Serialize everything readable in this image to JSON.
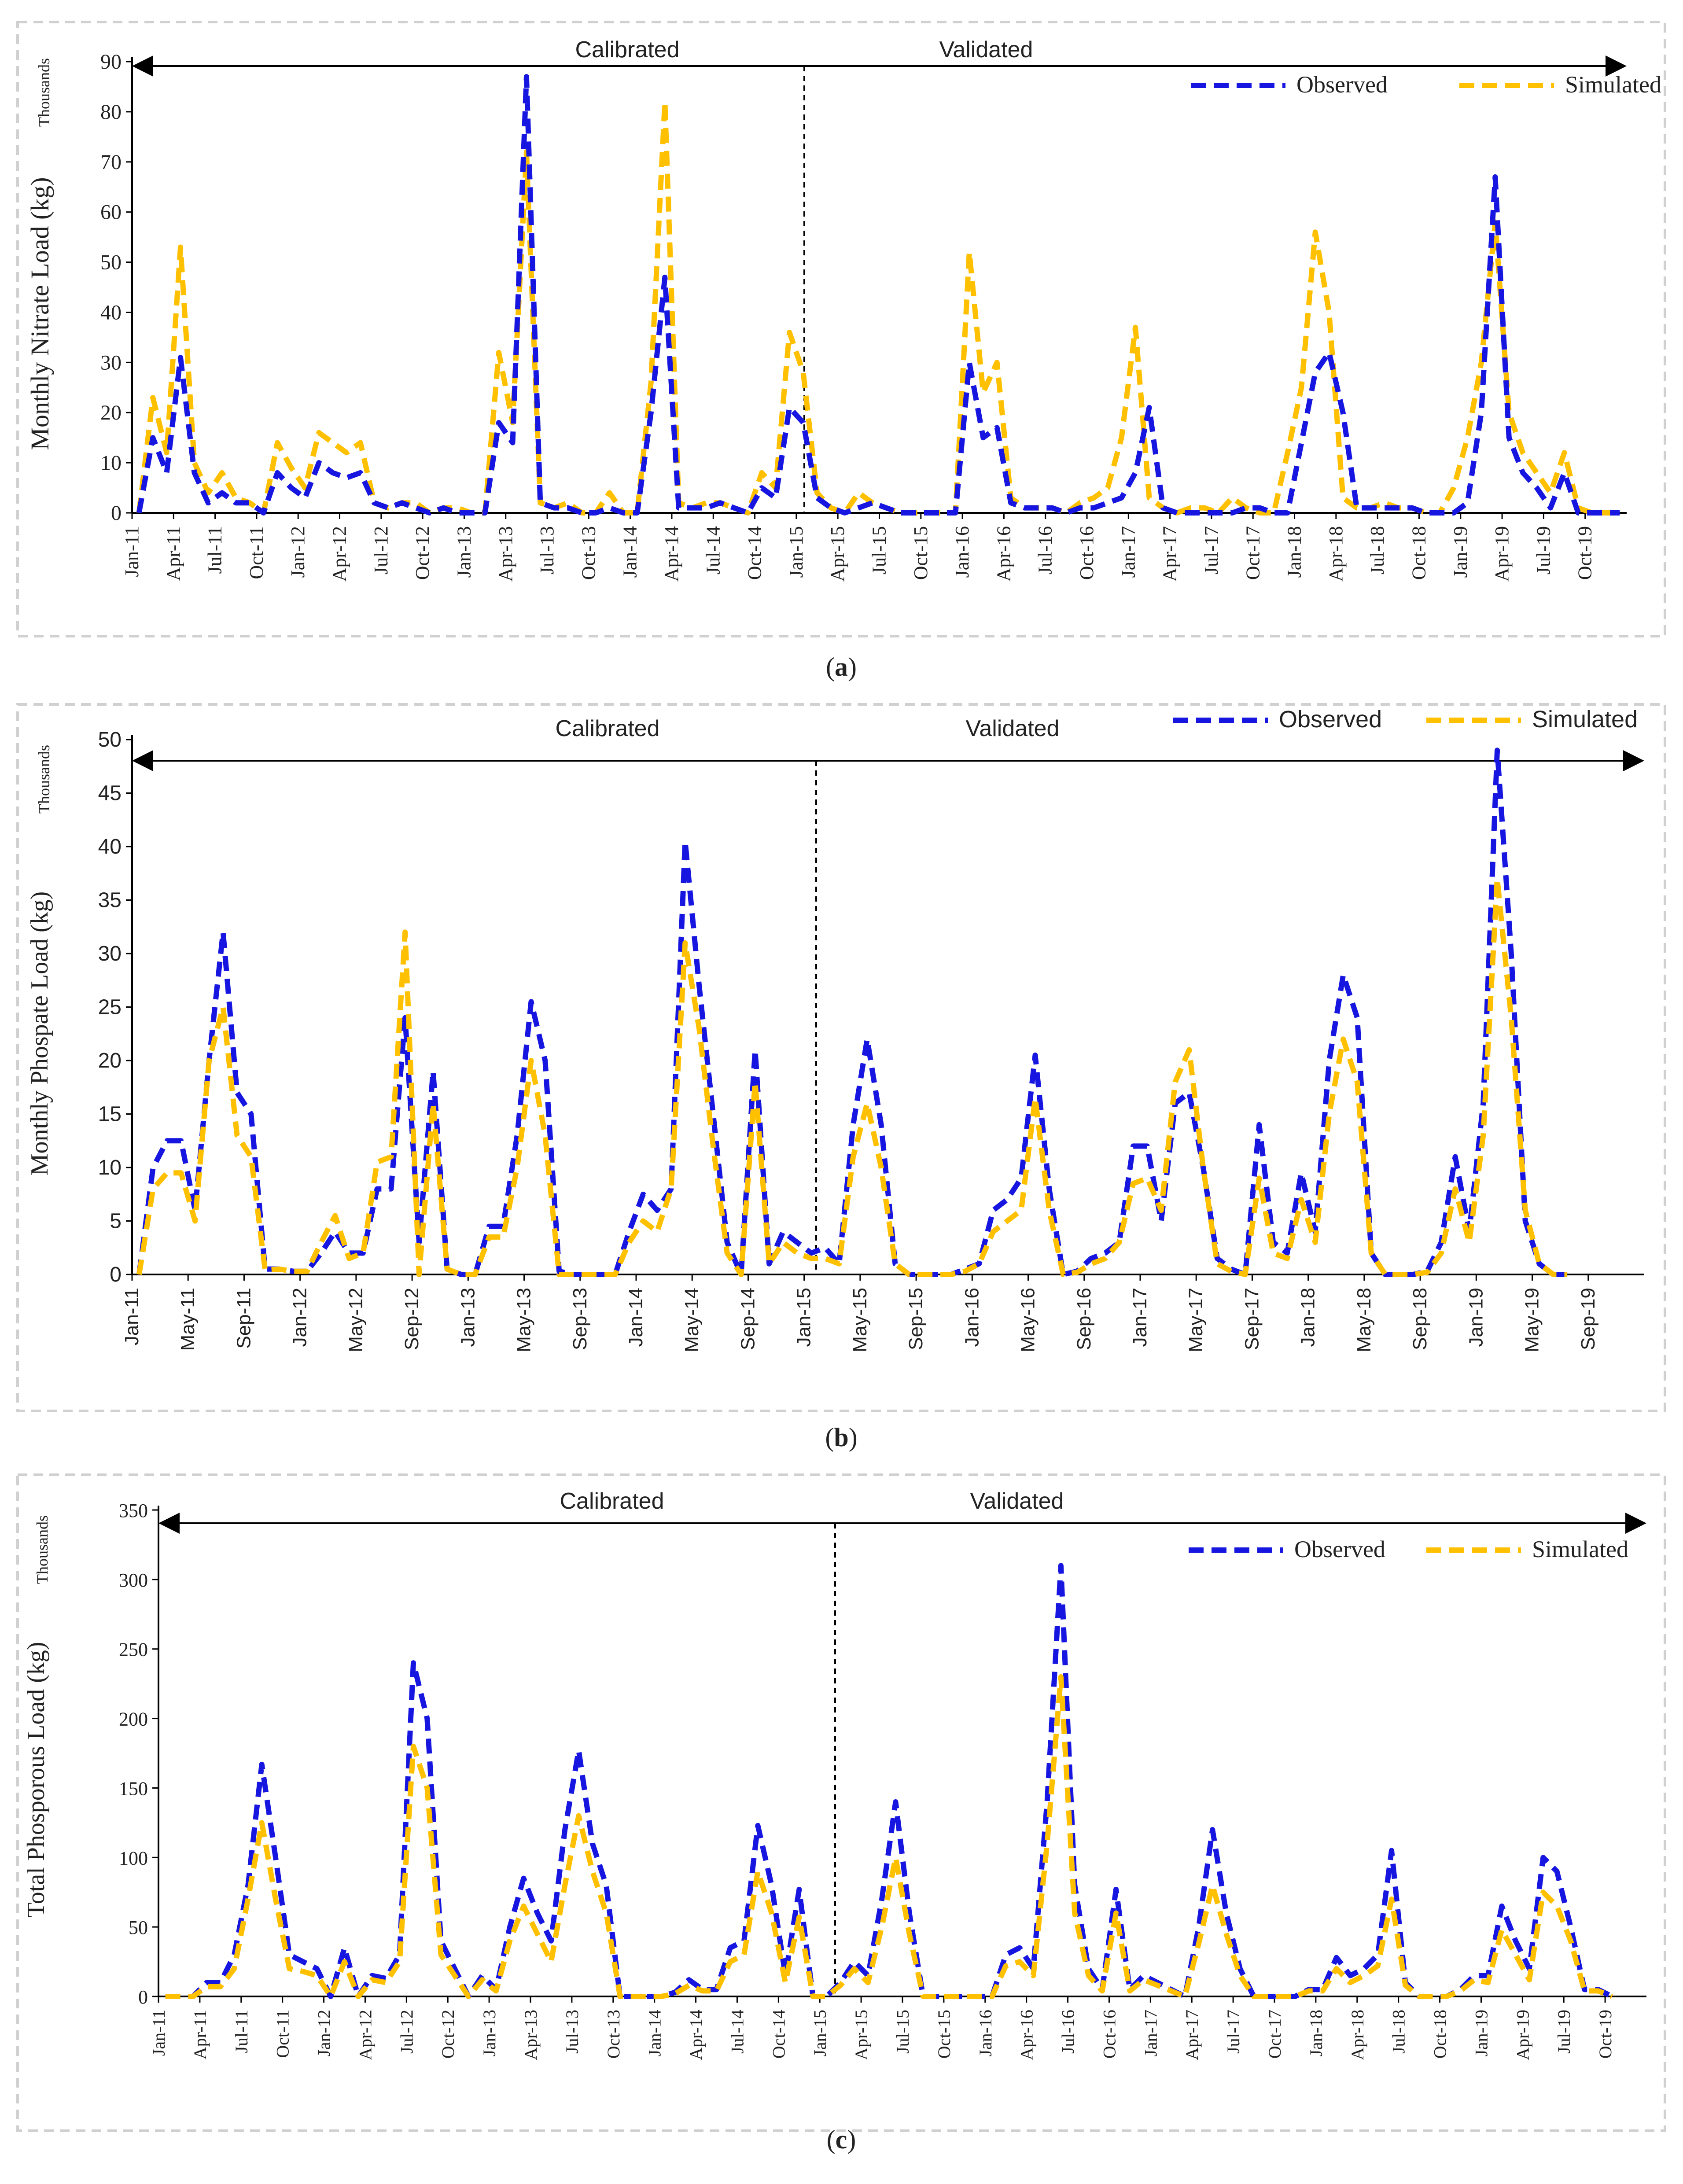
{
  "panels": [
    {
      "caption_letter": "a",
      "chart_data": {
        "type": "line",
        "units_label": "Thousands",
        "ylabel": "Monthly  Nitrate Load (kg)",
        "ylim": [
          0,
          90
        ],
        "yticks": [
          0,
          10,
          20,
          30,
          40,
          50,
          60,
          70,
          80,
          90
        ],
        "x_start": "Jan-11",
        "x_months": 108,
        "x_tick_labels": [
          "Jan-11",
          "Apr-11",
          "Jul-11",
          "Oct-11",
          "Jan-12",
          "Apr-12",
          "Jul-12",
          "Oct-12",
          "Jan-13",
          "Apr-13",
          "Jul-13",
          "Oct-13",
          "Jan-14",
          "Apr-14",
          "Jul-14",
          "Oct-14",
          "Jan-15",
          "Apr-15",
          "Jul-15",
          "Oct-15",
          "Jan-16",
          "Apr-16",
          "Jul-16",
          "Oct-16",
          "Jan-17",
          "Apr-17",
          "Jul-17",
          "Oct-17",
          "Jan-18",
          "Apr-18",
          "Jul-18",
          "Oct-18",
          "Jan-19",
          "Apr-19",
          "Jul-19",
          "Oct-19"
        ],
        "period_labels": [
          "Calibrated",
          "Validated"
        ],
        "split_at": "Jan-15",
        "legend_position": "top-right",
        "series": [
          {
            "name": "Observed",
            "color": "#1616e0",
            "values": [
              0,
              15,
              8,
              31,
              8,
              2,
              4,
              2,
              2,
              0,
              8,
              5,
              3,
              10,
              8,
              7,
              8,
              2,
              1,
              2,
              1,
              0,
              1,
              0,
              0,
              0,
              18,
              14,
              87,
              2,
              1,
              1,
              0,
              0,
              1,
              0,
              0,
              20,
              47,
              1,
              1,
              1,
              2,
              1,
              0,
              5,
              3,
              21,
              18,
              3,
              1,
              0,
              1,
              2,
              1,
              0,
              0,
              0,
              0,
              0,
              30,
              15,
              17,
              2,
              1,
              1,
              1,
              0,
              1,
              1,
              2,
              3,
              8,
              21,
              1,
              0,
              0,
              0,
              0,
              0,
              1,
              1,
              0,
              0,
              14,
              28,
              32,
              20,
              1,
              1,
              1,
              1,
              1,
              0,
              0,
              0,
              2,
              20,
              67,
              15,
              8,
              5,
              1,
              8,
              0,
              0,
              0,
              0
            ]
          },
          {
            "name": "Simulated",
            "color": "#ffc000",
            "values": [
              0,
              23,
              12,
              53,
              10,
              4,
              8,
              3,
              2,
              0,
              14,
              9,
              5,
              16,
              14,
              12,
              14,
              2,
              1,
              2,
              2,
              0,
              1,
              1,
              0,
              0,
              32,
              18,
              72,
              2,
              1,
              2,
              0,
              0,
              4,
              0,
              0,
              26,
              82,
              2,
              1,
              2,
              2,
              1,
              0,
              8,
              5,
              36,
              28,
              4,
              1,
              0,
              4,
              2,
              1,
              0,
              0,
              0,
              0,
              0,
              52,
              24,
              30,
              3,
              1,
              1,
              1,
              0,
              2,
              3,
              5,
              15,
              37,
              3,
              1,
              0,
              1,
              1,
              0,
              3,
              1,
              0,
              0,
              12,
              25,
              56,
              40,
              3,
              1,
              1,
              2,
              1,
              1,
              0,
              0,
              5,
              15,
              30,
              58,
              20,
              12,
              8,
              4,
              12,
              1,
              0,
              0,
              0
            ]
          }
        ]
      }
    },
    {
      "caption_letter": "b",
      "chart_data": {
        "type": "line",
        "units_label": "Thousands",
        "ylabel": "Monthly Phospate Load (kg)",
        "ylim": [
          0,
          50
        ],
        "yticks": [
          0,
          5,
          10,
          15,
          20,
          25,
          30,
          35,
          40,
          45,
          50
        ],
        "x_start": "Jan-11",
        "x_months": 108,
        "x_tick_labels": [
          "Jan-11",
          "May-11",
          "Sep-11",
          "Jan-12",
          "May-12",
          "Sep-12",
          "Jan-13",
          "May-13",
          "Sep-13",
          "Jan-14",
          "May-14",
          "Sep-14",
          "Jan-15",
          "May-15",
          "Sep-15",
          "Jan-16",
          "May-16",
          "Sep-16",
          "Jan-17",
          "May-17",
          "Sep-17",
          "Jan-18",
          "May-18",
          "Sep-18",
          "Jan-19",
          "May-19",
          "Sep-19"
        ],
        "period_labels": [
          "Calibrated",
          "Validated"
        ],
        "split_at": "Jan-15",
        "legend_position": "top-right",
        "series": [
          {
            "name": "Observed",
            "color": "#1616e0",
            "values": [
              0,
              10,
              12.5,
              12.5,
              6,
              20,
              32,
              17,
              15,
              0.5,
              0.5,
              0.3,
              0.3,
              2,
              4,
              2,
              2,
              8,
              8,
              24,
              3,
              19,
              0.5,
              0,
              0,
              4.5,
              4.5,
              13,
              25.5,
              20,
              0.3,
              0,
              0,
              0,
              0,
              4,
              7.5,
              6,
              8,
              40.5,
              27,
              15,
              3,
              0,
              21,
              1,
              4,
              3,
              2,
              2.5,
              1,
              14,
              22,
              14,
              1,
              0,
              0,
              0,
              0,
              0.5,
              1,
              6,
              7,
              9,
              20.5,
              8,
              0,
              0.3,
              1.5,
              2,
              3,
              12,
              12,
              5,
              16,
              17,
              10,
              1.5,
              0.5,
              0,
              14,
              3,
              2,
              9.5,
              4,
              20,
              28,
              24,
              2,
              0,
              0,
              0,
              0.3,
              3,
              11,
              4,
              16,
              49,
              30,
              5,
              1,
              0,
              0
            ]
          },
          {
            "name": "Simulated",
            "color": "#ffc000",
            "values": [
              0,
              8,
              9.5,
              9.5,
              5,
              20,
              25,
              13,
              11,
              0.4,
              0.5,
              0.3,
              0.3,
              3,
              5.5,
              1.5,
              2,
              10.5,
              11,
              32,
              0,
              16,
              0.5,
              0,
              0,
              3.5,
              3.5,
              10,
              20,
              13,
              0,
              0,
              0,
              0,
              0,
              3,
              5,
              4,
              8,
              31,
              23,
              12,
              2,
              0,
              18,
              1,
              3,
              2,
              1.5,
              1.5,
              1,
              11,
              16,
              10,
              1,
              0,
              0,
              0,
              0,
              0.3,
              1,
              4,
              5,
              6,
              16.5,
              6,
              0,
              0.2,
              1,
              1.5,
              3,
              8.5,
              9,
              6,
              18,
              21,
              10,
              1,
              0.3,
              0,
              9,
              2,
              1.5,
              7,
              3,
              15,
              22,
              18,
              2,
              0,
              0,
              0,
              0.2,
              2,
              8,
              3,
              13,
              37,
              24,
              6,
              1,
              0,
              0
            ]
          }
        ]
      }
    },
    {
      "caption_letter": "c",
      "chart_data": {
        "type": "line",
        "units_label": "Thousands",
        "ylabel": "Total Phosporous Load (kg)",
        "ylim": [
          0,
          350
        ],
        "yticks": [
          0,
          50,
          100,
          150,
          200,
          250,
          300,
          350
        ],
        "x_start": "Jan-11",
        "x_months": 108,
        "x_tick_labels": [
          "Jan-11",
          "Apr-11",
          "Jul-11",
          "Oct-11",
          "Jan-12",
          "Apr-12",
          "Jul-12",
          "Oct-12",
          "Jan-13",
          "Apr-13",
          "Jul-13",
          "Oct-13",
          "Jan-14",
          "Apr-14",
          "Jul-14",
          "Oct-14",
          "Jan-15",
          "Apr-15",
          "Jul-15",
          "Oct-15",
          "Jan-16",
          "Apr-16",
          "Jul-16",
          "Oct-16",
          "Jan-17",
          "Apr-17",
          "Jul-17",
          "Oct-17",
          "Jan-18",
          "Apr-18",
          "Jul-18",
          "Oct-18",
          "Jan-19",
          "Apr-19",
          "Jul-19",
          "Oct-19"
        ],
        "period_labels": [
          "Calibrated",
          "Validated"
        ],
        "split_at": "Jan-15",
        "legend_position": "top-right",
        "series": [
          {
            "name": "Observed",
            "color": "#1616e0",
            "values": [
              0,
              0,
              0,
              10,
              10,
              30,
              80,
              167,
              100,
              30,
              25,
              20,
              0,
              35,
              0,
              15,
              13,
              30,
              240,
              200,
              40,
              20,
              0,
              15,
              5,
              50,
              85,
              60,
              40,
              120,
              177,
              110,
              80,
              0,
              0,
              0,
              0,
              3,
              12,
              5,
              5,
              35,
              40,
              123,
              80,
              15,
              77,
              0,
              0,
              10,
              25,
              15,
              70,
              140,
              60,
              0,
              0,
              0,
              0,
              0,
              0,
              30,
              35,
              20,
              140,
              310,
              80,
              20,
              5,
              77,
              5,
              15,
              10,
              5,
              0,
              50,
              120,
              60,
              20,
              0,
              0,
              0,
              0,
              5,
              5,
              28,
              15,
              20,
              30,
              105,
              10,
              0,
              0,
              0,
              5,
              15,
              15,
              65,
              40,
              20,
              100,
              90,
              50,
              5,
              5,
              0
            ]
          },
          {
            "name": "Simulated",
            "color": "#ffc000",
            "values": [
              0,
              0,
              0,
              7,
              7,
              20,
              70,
              125,
              70,
              20,
              18,
              15,
              0,
              25,
              0,
              12,
              10,
              25,
              180,
              150,
              30,
              15,
              0,
              12,
              4,
              40,
              65,
              45,
              25,
              80,
              130,
              90,
              60,
              0,
              0,
              0,
              0,
              2,
              8,
              4,
              4,
              25,
              30,
              90,
              60,
              10,
              57,
              0,
              0,
              8,
              20,
              10,
              50,
              100,
              45,
              0,
              0,
              0,
              0,
              0,
              0,
              22,
              25,
              15,
              110,
              230,
              60,
              15,
              4,
              60,
              4,
              12,
              8,
              4,
              0,
              38,
              80,
              45,
              15,
              0,
              0,
              0,
              0,
              4,
              4,
              20,
              10,
              15,
              22,
              70,
              8,
              0,
              0,
              0,
              4,
              12,
              10,
              48,
              30,
              12,
              75,
              65,
              40,
              4,
              4,
              0
            ]
          }
        ]
      }
    }
  ]
}
